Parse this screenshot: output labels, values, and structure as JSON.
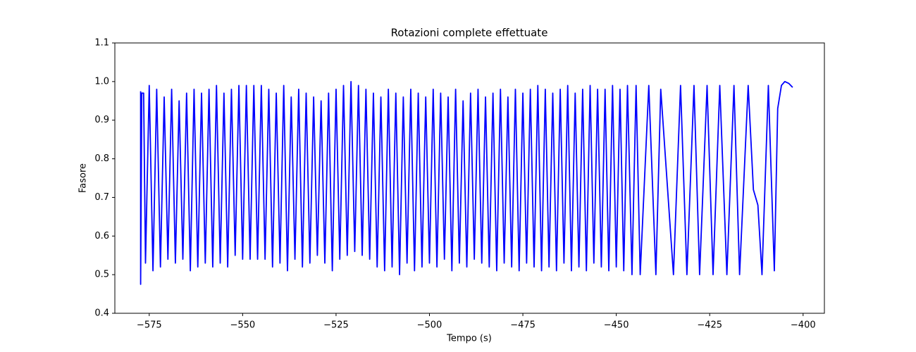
{
  "chart_data": {
    "type": "line",
    "title": "Rotazioni complete effettuate",
    "xlabel": "Tempo (s)",
    "ylabel": "Fasore",
    "color": "#0000ff",
    "xlim": [
      -584.2,
      -394.3
    ],
    "ylim": [
      0.4,
      1.1
    ],
    "xticks": [
      {
        "value": -575,
        "label": "−575"
      },
      {
        "value": -550,
        "label": "−550"
      },
      {
        "value": -525,
        "label": "−525"
      },
      {
        "value": -500,
        "label": "−500"
      },
      {
        "value": -475,
        "label": "−475"
      },
      {
        "value": -450,
        "label": "−450"
      },
      {
        "value": -425,
        "label": "−425"
      },
      {
        "value": -400,
        "label": "−400"
      }
    ],
    "yticks": [
      0.4,
      0.5,
      0.6,
      0.7,
      0.8,
      0.9,
      {
        "value": 1,
        "label": "1.0"
      },
      1.1
    ],
    "grid": false,
    "x": [
      -577.3,
      -577.3,
      -577,
      -576.5,
      -576,
      -575,
      -574,
      -573,
      -572,
      -571,
      -570,
      -569,
      -568,
      -567,
      -566,
      -565,
      -564,
      -563,
      -562,
      -561,
      -560,
      -559,
      -558,
      -557,
      -556,
      -555,
      -554,
      -553,
      -552,
      -551,
      -550,
      -549,
      -548,
      -547,
      -546,
      -545,
      -544,
      -543,
      -542,
      -541,
      -540,
      -539,
      -538,
      -537,
      -536,
      -535,
      -534,
      -533,
      -532,
      -531,
      -530,
      -529,
      -528,
      -527,
      -526,
      -525,
      -524,
      -523,
      -522,
      -521,
      -520,
      -519,
      -518,
      -517,
      -516,
      -515,
      -514,
      -513,
      -512,
      -511,
      -510,
      -509,
      -508,
      -507,
      -506,
      -505,
      -504,
      -503,
      -502,
      -501,
      -500,
      -499,
      -498,
      -497,
      -496,
      -495,
      -494,
      -493,
      -492,
      -491,
      -490,
      -489,
      -488,
      -487,
      -486,
      -485,
      -484,
      -483,
      -482,
      -481,
      -480,
      -479,
      -478,
      -477,
      -476,
      -475,
      -474,
      -473,
      -472,
      -471,
      -470,
      -469,
      -468,
      -467,
      -466,
      -465,
      -464,
      -463,
      -462,
      -461,
      -460,
      -459,
      -458,
      -457,
      -456,
      -455,
      -454,
      -453,
      -452,
      -451,
      -450,
      -449,
      -448,
      -447,
      -445.8,
      -444.7,
      -443.6,
      -441.3,
      -439.4,
      -438.1,
      -434.7,
      -432.8,
      -431.1,
      -429.2,
      -427.7,
      -425.7,
      -424.1,
      -422.3,
      -420.4,
      -418.5,
      -417.0,
      -414.7,
      -413.3,
      -412.1,
      -411.0,
      -409.3,
      -407.7,
      -406.8,
      -405.8,
      -404.9,
      -403.8,
      -402.8
    ],
    "values": [
      0.975,
      0.475,
      0.97,
      0.97,
      0.53,
      0.99,
      0.51,
      0.98,
      0.52,
      0.96,
      0.54,
      0.98,
      0.53,
      0.95,
      0.54,
      0.97,
      0.51,
      0.98,
      0.52,
      0.97,
      0.53,
      0.98,
      0.52,
      0.99,
      0.53,
      0.97,
      0.52,
      0.98,
      0.55,
      0.99,
      0.54,
      0.99,
      0.54,
      0.99,
      0.54,
      0.99,
      0.54,
      0.98,
      0.52,
      0.97,
      0.53,
      0.99,
      0.51,
      0.96,
      0.54,
      0.98,
      0.52,
      0.97,
      0.53,
      0.96,
      0.55,
      0.95,
      0.53,
      0.97,
      0.51,
      0.98,
      0.54,
      0.99,
      0.55,
      1.0,
      0.56,
      0.99,
      0.55,
      0.98,
      0.54,
      0.97,
      0.52,
      0.96,
      0.51,
      0.98,
      0.52,
      0.97,
      0.5,
      0.96,
      0.53,
      0.98,
      0.51,
      0.97,
      0.52,
      0.96,
      0.53,
      0.98,
      0.52,
      0.97,
      0.54,
      0.96,
      0.51,
      0.98,
      0.53,
      0.95,
      0.52,
      0.97,
      0.54,
      0.98,
      0.53,
      0.96,
      0.52,
      0.97,
      0.51,
      0.98,
      0.53,
      0.96,
      0.52,
      0.98,
      0.51,
      0.97,
      0.53,
      0.98,
      0.52,
      0.99,
      0.51,
      0.98,
      0.52,
      0.97,
      0.51,
      0.98,
      0.53,
      0.99,
      0.51,
      0.97,
      0.52,
      0.98,
      0.51,
      0.99,
      0.53,
      0.98,
      0.52,
      0.98,
      0.51,
      0.99,
      0.52,
      0.98,
      0.51,
      0.99,
      0.5,
      0.99,
      0.5,
      0.99,
      0.5,
      0.98,
      0.5,
      0.99,
      0.5,
      0.99,
      0.5,
      0.99,
      0.5,
      0.99,
      0.5,
      0.99,
      0.5,
      0.99,
      0.72,
      0.68,
      0.5,
      0.99,
      0.51,
      0.93,
      0.99,
      1.0,
      0.995,
      0.985
    ]
  }
}
